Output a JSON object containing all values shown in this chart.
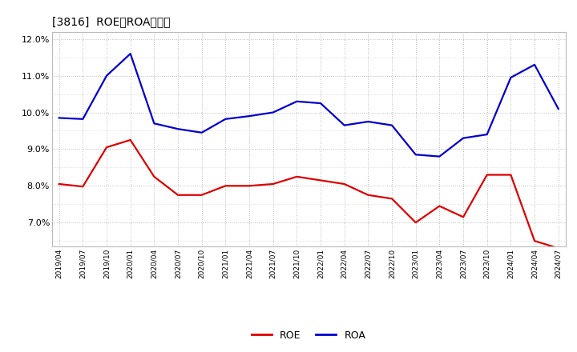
{
  "title": "[3816]  ROE、ROAの推移",
  "x_labels": [
    "2019/04",
    "2019/07",
    "2019/10",
    "2020/01",
    "2020/04",
    "2020/07",
    "2020/10",
    "2021/01",
    "2021/04",
    "2021/07",
    "2021/10",
    "2022/01",
    "2022/04",
    "2022/07",
    "2022/10",
    "2023/01",
    "2023/04",
    "2023/07",
    "2023/10",
    "2024/01",
    "2024/04",
    "2024/07"
  ],
  "roe_values": [
    8.05,
    7.98,
    9.05,
    9.25,
    8.25,
    7.75,
    7.75,
    8.0,
    8.0,
    8.05,
    8.25,
    8.15,
    8.05,
    7.75,
    7.65,
    7.0,
    7.45,
    7.15,
    8.3,
    8.3,
    6.5,
    6.3
  ],
  "roa_values": [
    9.85,
    9.82,
    11.0,
    11.6,
    9.7,
    9.55,
    9.45,
    9.82,
    9.9,
    10.0,
    10.3,
    10.25,
    9.65,
    9.75,
    9.65,
    8.85,
    8.8,
    9.3,
    9.4,
    10.95,
    11.3,
    10.1
  ],
  "roe_color": "#dd0000",
  "roa_color": "#0000cc",
  "background_color": "#ffffff",
  "plot_bg_color": "#ffffff",
  "grid_color": "#aaaaaa",
  "ylim_min": 6.5,
  "ylim_max": 12.2,
  "ytick_values": [
    7.0,
    8.0,
    9.0,
    10.0,
    11.0,
    12.0
  ],
  "ytick_labels": [
    "7.0%",
    "8.0%",
    "9.0%",
    "10.0%",
    "11.0%",
    "12.0%"
  ],
  "line_width": 1.6,
  "legend_labels": [
    "ROE",
    "ROA"
  ]
}
